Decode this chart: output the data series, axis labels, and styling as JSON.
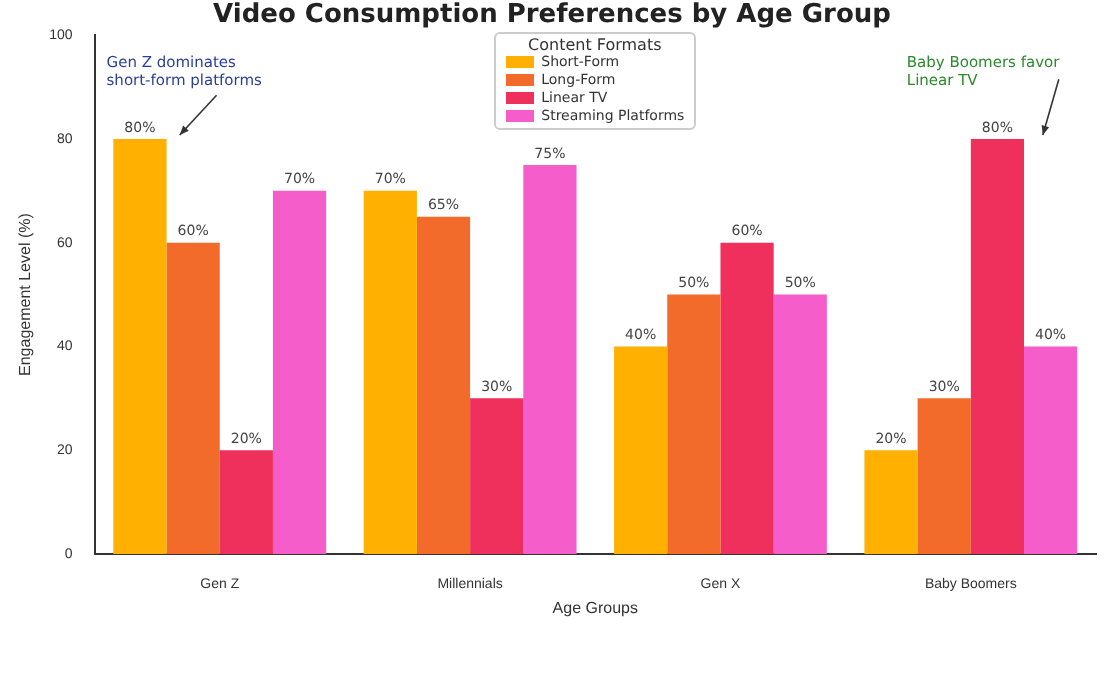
{
  "chart_data": {
    "type": "bar",
    "title": "Video Consumption Preferences by Age Group",
    "xlabel": "Age Groups",
    "ylabel": "Engagement Level (%)",
    "legend_title": "Content Formats",
    "legend": "top",
    "categories": [
      "Gen Z",
      "Millennials",
      "Gen X",
      "Baby Boomers"
    ],
    "series": [
      {
        "name": "Short-Form",
        "color": "#ffb000",
        "values": [
          80,
          70,
          40,
          20
        ],
        "value_labels": [
          "80%",
          "70%",
          "40%",
          "20%"
        ]
      },
      {
        "name": "Long-Form",
        "color": "#f26b2b",
        "values": [
          60,
          65,
          50,
          30
        ],
        "value_labels": [
          "60%",
          "65%",
          "50%",
          "30%"
        ]
      },
      {
        "name": "Linear TV",
        "color": "#f0305c",
        "values": [
          20,
          30,
          60,
          80
        ],
        "value_labels": [
          "20%",
          "30%",
          "60%",
          "80%"
        ]
      },
      {
        "name": "Streaming Platforms",
        "color": "#f55dcb",
        "values": [
          70,
          75,
          50,
          40
        ],
        "value_labels": [
          "70%",
          "75%",
          "50%",
          "40%"
        ]
      }
    ],
    "ylim": [
      0,
      100
    ],
    "yticks": [
      0,
      20,
      40,
      60,
      80,
      100
    ],
    "grid": false,
    "annotations": [
      "Gen Z dominates short-form platforms",
      "Baby Boomers favor Linear TV"
    ]
  }
}
